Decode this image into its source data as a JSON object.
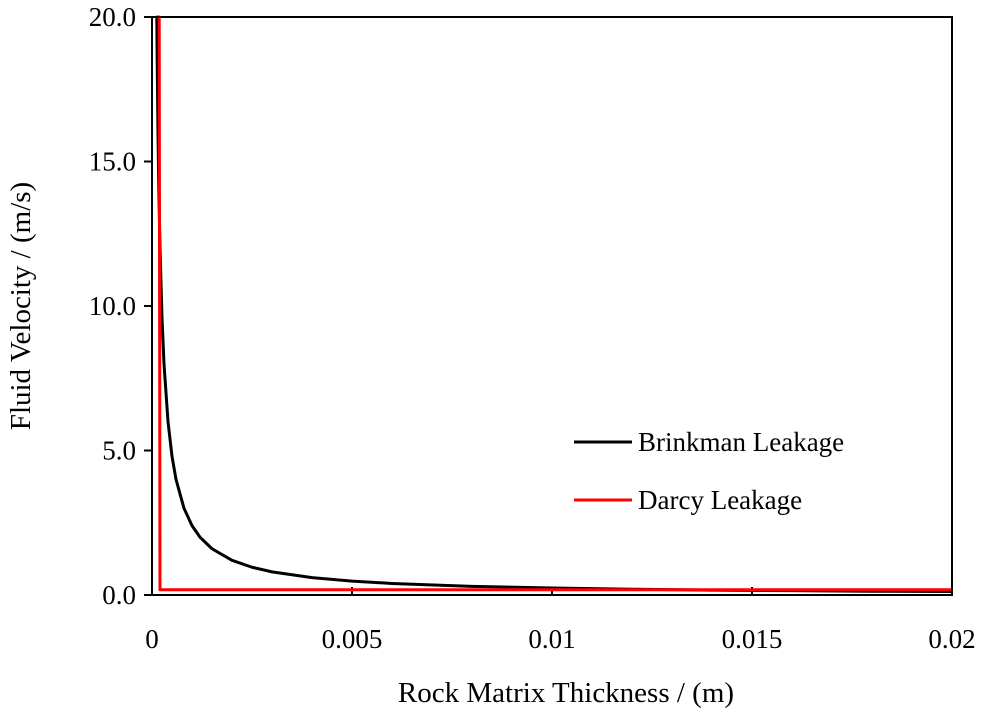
{
  "chart_data": {
    "type": "line",
    "title": "",
    "xlabel": "Rock Matrix Thickness / (m)",
    "ylabel": "Fluid Velocity / (m/s)",
    "xlim": [
      0,
      0.02
    ],
    "ylim": [
      0,
      20
    ],
    "xticks": [
      0,
      0.005,
      0.01,
      0.015,
      0.02
    ],
    "xtick_labels": [
      "0",
      "0.005",
      "0.01",
      "0.015",
      "0.02"
    ],
    "yticks": [
      0,
      5,
      10,
      15,
      20
    ],
    "ytick_labels": [
      "0.0",
      "5.0",
      "10.0",
      "15.0",
      "20.0"
    ],
    "grid": false,
    "legend_position": "right",
    "series": [
      {
        "name": "Brinkman Leakage",
        "color": "#000000",
        "x": [
          0.00012,
          0.00013,
          0.00015,
          0.00017,
          0.0002,
          0.00025,
          0.0003,
          0.0004,
          0.0005,
          0.0006,
          0.0008,
          0.001,
          0.0012,
          0.0015,
          0.002,
          0.0025,
          0.003,
          0.004,
          0.005,
          0.006,
          0.008,
          0.01,
          0.012,
          0.014,
          0.016,
          0.018,
          0.02
        ],
        "y": [
          20.0,
          18.5,
          16.0,
          14.1,
          12.0,
          9.6,
          8.0,
          6.0,
          4.8,
          4.0,
          3.0,
          2.4,
          2.0,
          1.6,
          1.2,
          0.96,
          0.8,
          0.6,
          0.48,
          0.4,
          0.3,
          0.24,
          0.2,
          0.17,
          0.15,
          0.13,
          0.12
        ]
      },
      {
        "name": "Darcy Leakage",
        "color": "#ff0000",
        "x": [
          0.0001,
          0.00018,
          0.0002,
          0.02
        ],
        "y": [
          20.0,
          20.0,
          0.18,
          0.18
        ]
      }
    ]
  }
}
